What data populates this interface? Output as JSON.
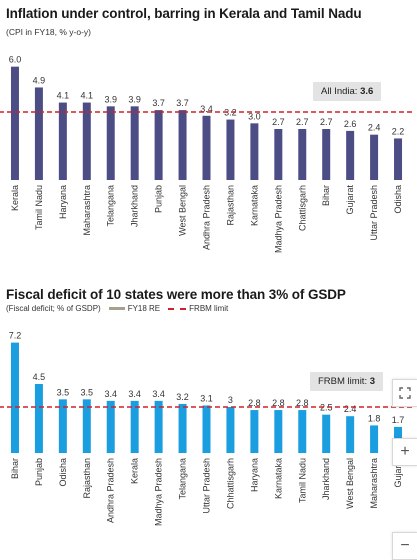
{
  "chart_data": [
    {
      "type": "bar",
      "title": "Inflation under control, barring in Kerala and Tamil Nadu",
      "subtitle": "(CPI in FY18, % y-o-y)",
      "categories": [
        "Kerala",
        "Tamil Nadu",
        "Haryana",
        "Maharashtra",
        "Telangana",
        "Jharkhand",
        "Punjab",
        "West Bengal",
        "Andhra Pradesh",
        "Rajasthan",
        "Karnataka",
        "Madhya Pradesh",
        "Chattisgarh",
        "Bihar",
        "Gujarat",
        "Uttar Pradesh",
        "Odisha"
      ],
      "values": [
        6.0,
        4.9,
        4.1,
        4.1,
        3.9,
        3.9,
        3.7,
        3.7,
        3.4,
        3.2,
        3.0,
        2.7,
        2.7,
        2.7,
        2.6,
        2.4,
        2.2
      ],
      "value_labels": [
        "6.0",
        "4.9",
        "4.1",
        "4.1",
        "3.9",
        "3.9",
        "3.7",
        "3.7",
        "3.4",
        "3.2",
        "3.0",
        "2.7",
        "2.7",
        "2.7",
        "2.6",
        "2.4",
        "2.2"
      ],
      "reference_line": 3.6,
      "callout_label": "All India:",
      "callout_value": "3.6",
      "ylim": [
        0,
        6.3
      ],
      "bar_color": "#4d4d86",
      "line_color": "#d0202a"
    },
    {
      "type": "bar",
      "title": "Fiscal deficit of 10 states were more than 3% of GSDP",
      "subtitle": "(Fiscal deficit; % of GSDP)",
      "legend": [
        "FY18 RE",
        "FRBM limit"
      ],
      "categories": [
        "Bihar",
        "Punjab",
        "Odisha",
        "Rajasthan",
        "Andhra Pradesh",
        "Kerala",
        "Madhya Pradesh",
        "Telangana",
        "Uttar Pradesh",
        "Chhattisgarh",
        "Haryana",
        "Karnataka",
        "Tamil Nadu",
        "Jharkhand",
        "West Bengal",
        "Maharashtra",
        "Gujarat"
      ],
      "values": [
        7.2,
        4.5,
        3.5,
        3.5,
        3.4,
        3.4,
        3.4,
        3.2,
        3.1,
        3.0,
        2.8,
        2.8,
        2.8,
        2.5,
        2.4,
        1.8,
        1.7
      ],
      "value_labels": [
        "7.2",
        "4.5",
        "3.5",
        "3.5",
        "3.4",
        "3.4",
        "3.4",
        "3.2",
        "3.1",
        "3",
        "2.8",
        "2.8",
        "2.8",
        "2.5",
        "2.4",
        "1.8",
        "1.7"
      ],
      "reference_line": 3,
      "callout_label": "FRBM limit:",
      "callout_value": "3",
      "ylim": [
        0,
        7.5
      ],
      "bar_color": "#1a9ee0",
      "line_color": "#d0202a"
    }
  ],
  "controls": {
    "fullscreen_icon": "fullscreen-icon",
    "zoom_in_label": "+",
    "zoom_out_label": "−"
  }
}
